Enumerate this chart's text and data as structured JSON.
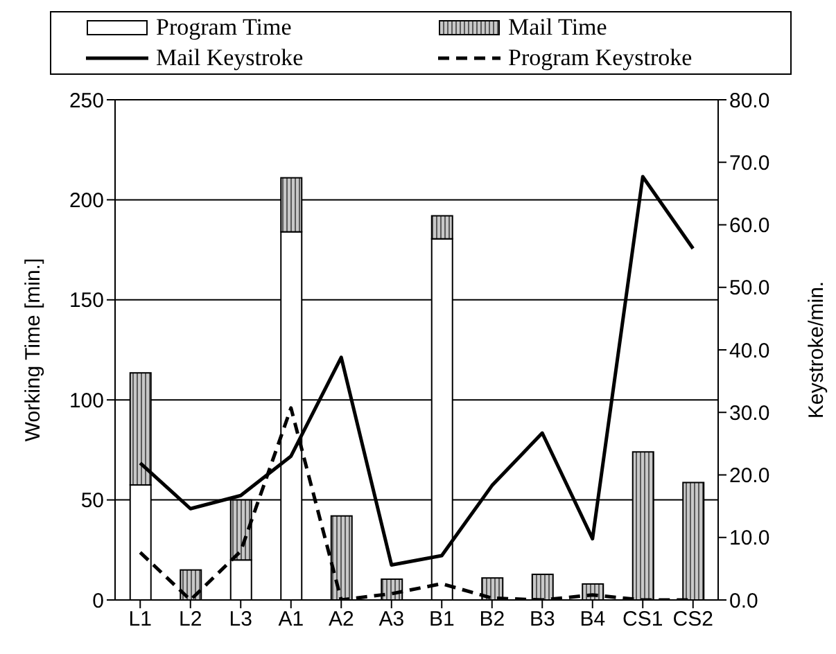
{
  "chart_data": {
    "type": "bar",
    "stacked": true,
    "categories": [
      "L1",
      "L2",
      "L3",
      "A1",
      "A2",
      "A3",
      "B1",
      "B2",
      "B3",
      "B4",
      "CS1",
      "CS2"
    ],
    "ylabel": "Working Time [min.]",
    "y2label": "Keystroke/min.",
    "ylim": [
      0,
      250
    ],
    "yticks": [
      0,
      50,
      100,
      150,
      200,
      250
    ],
    "y2lim": [
      0,
      80
    ],
    "y2ticks": [
      {
        "value": 0,
        "label": "0.0"
      },
      {
        "value": 10,
        "label": "10.0"
      },
      {
        "value": 20,
        "label": "20.0"
      },
      {
        "value": 30,
        "label": "30.0"
      },
      {
        "value": 40,
        "label": "40.0"
      },
      {
        "value": 50,
        "label": "50.0"
      },
      {
        "value": 60,
        "label": "60.0"
      },
      {
        "value": 70,
        "label": "70.0"
      },
      {
        "value": 80,
        "label": "80.0"
      }
    ],
    "grid": "y",
    "legend": "top",
    "marker": "none",
    "series": [
      {
        "name": "Program Time",
        "color": "#ffffff",
        "values": [
          57.5,
          0,
          20,
          184,
          0,
          0,
          180.5,
          0,
          0,
          0,
          0,
          0
        ]
      },
      {
        "name": "Mail Time",
        "color": "#c8c8c8",
        "values": [
          56,
          15,
          30,
          27,
          42,
          10.4,
          11.5,
          11,
          12.8,
          8,
          74,
          58.7
        ]
      },
      {
        "name": "Mail Keystroke",
        "type": "line",
        "axis": "y2",
        "line_style": "solid",
        "color": "#000000",
        "values": [
          21.9,
          14.6,
          16.7,
          23,
          38.8,
          5.6,
          7.1,
          18.3,
          26.7,
          9.8,
          67.7,
          56.2
        ]
      },
      {
        "name": "Program Keystroke",
        "type": "line",
        "axis": "y2",
        "line_style": "dashed",
        "color": "#000000",
        "values": [
          7.6,
          0,
          7.8,
          30.7,
          0,
          1,
          2.6,
          0.3,
          0,
          0.8,
          0,
          0
        ]
      }
    ]
  }
}
